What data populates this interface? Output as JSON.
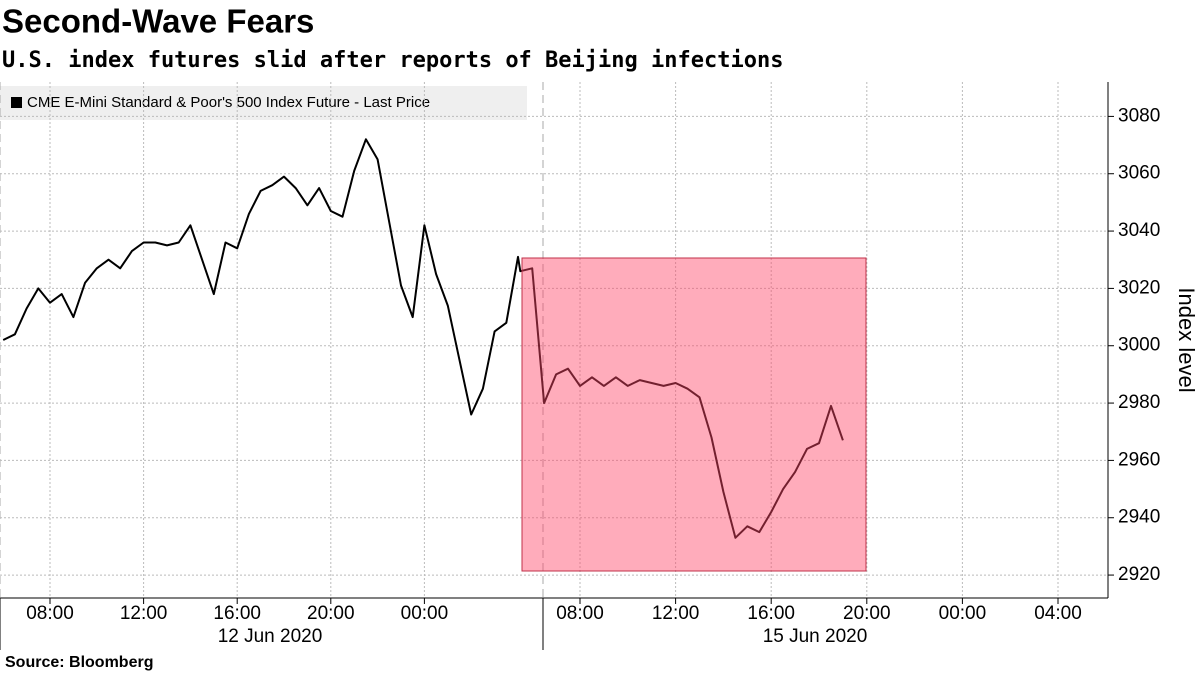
{
  "chart_data": {
    "type": "line",
    "title": "Second-Wave Fears",
    "subtitle": "U.S. index futures slid after reports of Beijing infections",
    "y_label": "Index level",
    "source": "Source: Bloomberg",
    "date_labels": [
      "12 Jun 2020",
      "15 Jun 2020"
    ],
    "ylim": [
      2912,
      3092
    ],
    "yticks": [
      2920,
      2940,
      2960,
      2980,
      3000,
      3020,
      3040,
      3060,
      3080
    ],
    "xticks": [
      {
        "value": "2020-06-12T08:00",
        "label": "08:00"
      },
      {
        "value": "2020-06-12T12:00",
        "label": "12:00"
      },
      {
        "value": "2020-06-12T16:00",
        "label": "16:00"
      },
      {
        "value": "2020-06-12T20:00",
        "label": "20:00"
      },
      {
        "value": "2020-06-13T00:00",
        "label": "00:00"
      },
      {
        "value": "2020-06-15T08:00",
        "label": "08:00"
      },
      {
        "value": "2020-06-15T12:00",
        "label": "12:00"
      },
      {
        "value": "2020-06-15T16:00",
        "label": "16:00"
      },
      {
        "value": "2020-06-15T20:00",
        "label": "20:00"
      },
      {
        "value": "2020-06-16T00:00",
        "label": "00:00"
      },
      {
        "value": "2020-06-16T04:00",
        "label": "04:00"
      }
    ],
    "grid": true,
    "x": [
      "2020-06-12T06:00",
      "2020-06-12T06:30",
      "2020-06-12T07:00",
      "2020-06-12T07:30",
      "2020-06-12T08:00",
      "2020-06-12T08:30",
      "2020-06-12T09:00",
      "2020-06-12T09:30",
      "2020-06-12T10:00",
      "2020-06-12T10:30",
      "2020-06-12T11:00",
      "2020-06-12T11:30",
      "2020-06-12T12:00",
      "2020-06-12T12:30",
      "2020-06-12T13:00",
      "2020-06-12T13:30",
      "2020-06-12T14:00",
      "2020-06-12T14:30",
      "2020-06-12T15:00",
      "2020-06-12T15:30",
      "2020-06-12T16:00",
      "2020-06-12T16:30",
      "2020-06-12T17:00",
      "2020-06-12T17:30",
      "2020-06-12T18:00",
      "2020-06-12T18:30",
      "2020-06-12T19:00",
      "2020-06-12T19:30",
      "2020-06-12T20:00",
      "2020-06-12T20:30",
      "2020-06-12T21:00",
      "2020-06-12T21:30",
      "2020-06-12T22:00",
      "2020-06-12T22:30",
      "2020-06-12T23:00",
      "2020-06-12T23:30",
      "2020-06-13T00:00",
      "2020-06-13T00:30",
      "2020-06-13T01:00",
      "2020-06-13T01:30",
      "2020-06-13T02:00",
      "2020-06-13T02:30",
      "2020-06-13T03:00",
      "2020-06-13T03:30",
      "2020-06-13T04:00",
      "2020-06-15T05:30",
      "2020-06-15T06:00",
      "2020-06-15T06:30",
      "2020-06-15T07:00",
      "2020-06-15T07:30",
      "2020-06-15T08:00",
      "2020-06-15T08:30",
      "2020-06-15T09:00",
      "2020-06-15T09:30",
      "2020-06-15T10:00",
      "2020-06-15T10:30",
      "2020-06-15T11:00",
      "2020-06-15T11:30",
      "2020-06-15T12:00",
      "2020-06-15T12:30",
      "2020-06-15T13:00",
      "2020-06-15T13:30",
      "2020-06-15T14:00",
      "2020-06-15T14:30",
      "2020-06-15T15:00",
      "2020-06-15T15:30",
      "2020-06-15T16:00",
      "2020-06-15T16:30",
      "2020-06-15T17:00",
      "2020-06-15T17:30",
      "2020-06-15T18:00",
      "2020-06-15T18:30",
      "2020-06-15T19:00"
    ],
    "series": [
      {
        "name": "CME E-Mini Standard & Poor's 500 Index Future - Last Price",
        "color": "#000000",
        "values": [
          3002,
          3004,
          3013,
          3020,
          3015,
          3018,
          3010,
          3022,
          3027,
          3030,
          3027,
          3033,
          3036,
          3036,
          3035,
          3036,
          3042,
          3030,
          3018,
          3036,
          3034,
          3046,
          3054,
          3056,
          3059,
          3055,
          3049,
          3055,
          3047,
          3045,
          3061,
          3072,
          3065,
          3043,
          3021,
          3010,
          3042,
          3025,
          3014,
          2995,
          2976,
          2985,
          3005,
          3008,
          3031,
          3026,
          3027,
          2980,
          2990,
          2992,
          2986,
          2989,
          2986,
          2989,
          2986,
          2988,
          2987,
          2986,
          2987,
          2985,
          2982,
          2968,
          2949,
          2933,
          2937,
          2935,
          2942,
          2950,
          2956,
          2964,
          2966,
          2979,
          2967
        ]
      }
    ]
  }
}
